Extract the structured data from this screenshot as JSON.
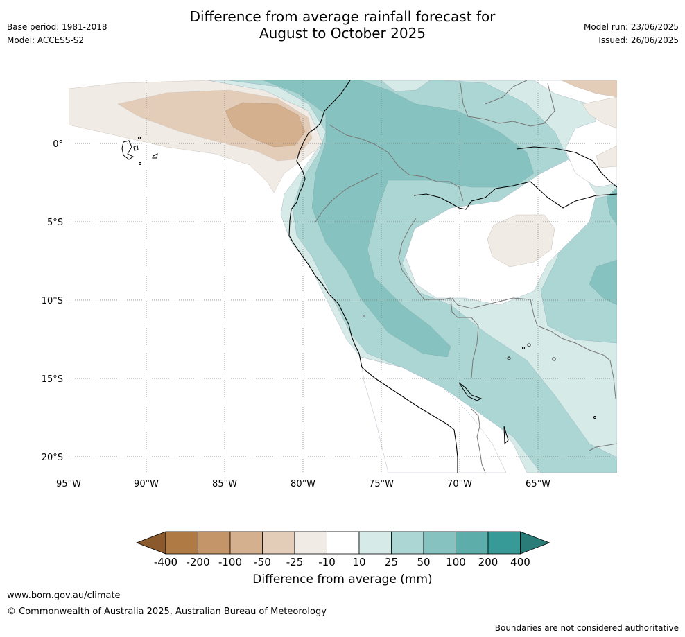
{
  "header": {
    "title_line1": "Difference from average rainfall forecast for",
    "title_line2": "August to October 2025",
    "base_period": "Base period: 1981-2018",
    "model": "Model: ACCESS-S2",
    "model_run": "Model run: 23/06/2025",
    "issued": "Issued: 26/06/2025"
  },
  "map": {
    "lon_labels": [
      "95°W",
      "90°W",
      "85°W",
      "80°W",
      "75°W",
      "70°W",
      "65°W"
    ],
    "lat_labels": [
      "0°",
      "5°S",
      "10°S",
      "15°S",
      "20°S"
    ]
  },
  "legend": {
    "tick_labels": [
      "-400",
      "-200",
      "-100",
      "-50",
      "-25",
      "-10",
      "10",
      "25",
      "50",
      "100",
      "200",
      "400"
    ],
    "colors": [
      "#8a5a2c",
      "#b07a45",
      "#c49569",
      "#d4b08e",
      "#e3cdb9",
      "#f1ebe5",
      "#ffffff",
      "#d6eae8",
      "#acd6d3",
      "#86c2c0",
      "#5dadaa",
      "#379a96",
      "#2a7c79"
    ],
    "label": "Difference from average (mm)"
  },
  "footer": {
    "website": "www.bom.gov.au/climate",
    "copyright": "© Commonwealth of Australia 2025, Australian Bureau of Meteorology",
    "disclaimer": "Boundaries are not considered authoritative"
  }
}
